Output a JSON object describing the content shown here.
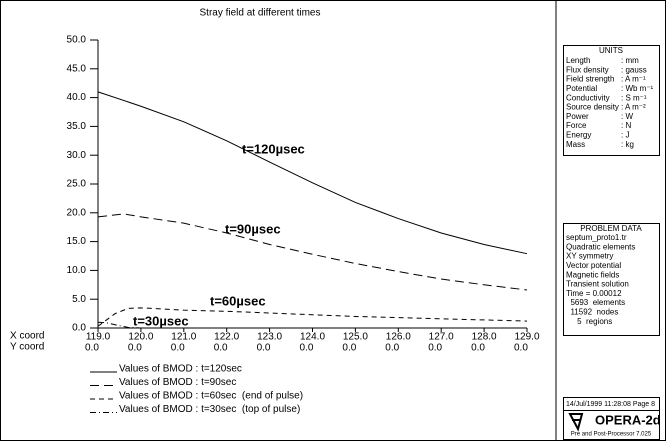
{
  "chart_data": {
    "type": "line",
    "title": "Stray field at different times",
    "x_axis_label": "X coord",
    "y_coord_label": "Y coord",
    "y_coord_values": [
      "0.0",
      "0.0",
      "0.0",
      "0.0",
      "0.0",
      "0.0",
      "0.0",
      "0.0",
      "0.0",
      "0.0",
      "0.0"
    ],
    "xlim": [
      119,
      129
    ],
    "xticks": [
      {
        "value": 119,
        "label": "119.0"
      },
      {
        "value": 120,
        "label": "120.0"
      },
      {
        "value": 121,
        "label": "121.0"
      },
      {
        "value": 122,
        "label": "122.0"
      },
      {
        "value": 123,
        "label": "123.0"
      },
      {
        "value": 124,
        "label": "124.0"
      },
      {
        "value": 125,
        "label": "125.0"
      },
      {
        "value": 126,
        "label": "126.0"
      },
      {
        "value": 127,
        "label": "127.0"
      },
      {
        "value": 128,
        "label": "128.0"
      },
      {
        "value": 129,
        "label": "129.0"
      }
    ],
    "ylim": [
      0,
      50
    ],
    "yticks": [
      {
        "value": 0,
        "label": "0.0"
      },
      {
        "value": 5,
        "label": "5.0"
      },
      {
        "value": 10,
        "label": "10.0"
      },
      {
        "value": 15,
        "label": "15.0"
      },
      {
        "value": 20,
        "label": "20.0"
      },
      {
        "value": 25,
        "label": "25.0"
      },
      {
        "value": 30,
        "label": "30.0"
      },
      {
        "value": 35,
        "label": "35.0"
      },
      {
        "value": 40,
        "label": "40.0"
      },
      {
        "value": 45,
        "label": "45.0"
      },
      {
        "value": 50,
        "label": "50.0"
      }
    ],
    "series": [
      {
        "name": "Values of BMOD : t=120sec",
        "color": "#000000",
        "style": "solid",
        "x": [
          119,
          120,
          121,
          122,
          123,
          124,
          125,
          126,
          127,
          128,
          129
        ],
        "values": [
          41,
          38.5,
          35.8,
          32.5,
          28.8,
          25.2,
          21.8,
          19,
          16.5,
          14.5,
          12.9
        ]
      },
      {
        "name": "Values of BMOD : t=90sec",
        "color": "#000000",
        "style": "long-dash",
        "x": [
          119,
          119.6,
          120,
          121,
          122,
          123,
          124,
          125,
          126,
          127,
          128,
          129
        ],
        "values": [
          19.3,
          19.8,
          19.3,
          18.2,
          16.5,
          14.5,
          12.8,
          11.2,
          9.8,
          8.5,
          7.5,
          6.6
        ]
      },
      {
        "name": "Values of BMOD : t=60sec  (end of pulse)",
        "color": "#000000",
        "style": "short-dash",
        "x": [
          119,
          119.4,
          119.7,
          120,
          121,
          122,
          123,
          124,
          125,
          126,
          127,
          128,
          129
        ],
        "values": [
          0.3,
          2.5,
          3.4,
          3.5,
          3.1,
          2.9,
          2.6,
          2.3,
          2.0,
          1.8,
          1.6,
          1.4,
          1.2
        ]
      },
      {
        "name": "Values of BMOD : t=30sec  (top of pulse)",
        "color": "#000000",
        "style": "dash-dot",
        "x": [
          119,
          119.2,
          119.5,
          119.7,
          120
        ],
        "values": [
          1.0,
          0.9,
          0.4,
          0.1,
          0
        ]
      }
    ],
    "annotations": [
      "t=120µsec",
      "t=90µsec",
      "t=60µsec",
      "t=30µsec"
    ]
  },
  "units_panel": {
    "title": "UNITS",
    "rows": [
      [
        "Length",
        ": mm"
      ],
      [
        "Flux density",
        ": gauss"
      ],
      [
        "Field strength",
        ": A m⁻¹"
      ],
      [
        "Potential",
        ": Wb m⁻¹"
      ],
      [
        "Conductivity",
        ": S m⁻¹"
      ],
      [
        "Source density",
        ": A m⁻²"
      ],
      [
        "Power",
        ": W"
      ],
      [
        "Force",
        ": N"
      ],
      [
        "Energy",
        ": J"
      ],
      [
        "Mass",
        ": kg"
      ]
    ]
  },
  "problem_panel": {
    "title": "PROBLEM DATA",
    "lines": [
      "septum_proto1.tr",
      "Quadratic elements",
      "XY symmetry",
      "Vector potential",
      "Magnetic fields",
      "Transient solution",
      "Time = 0.00012",
      "  5693  elements",
      "  11592  nodes",
      "     5  regions"
    ]
  },
  "footer": {
    "date": "14/Jul/1999 11:28:08 Page 8",
    "logo": "OPERA-2d",
    "product": "Pre and Post-Processor 7.025"
  }
}
